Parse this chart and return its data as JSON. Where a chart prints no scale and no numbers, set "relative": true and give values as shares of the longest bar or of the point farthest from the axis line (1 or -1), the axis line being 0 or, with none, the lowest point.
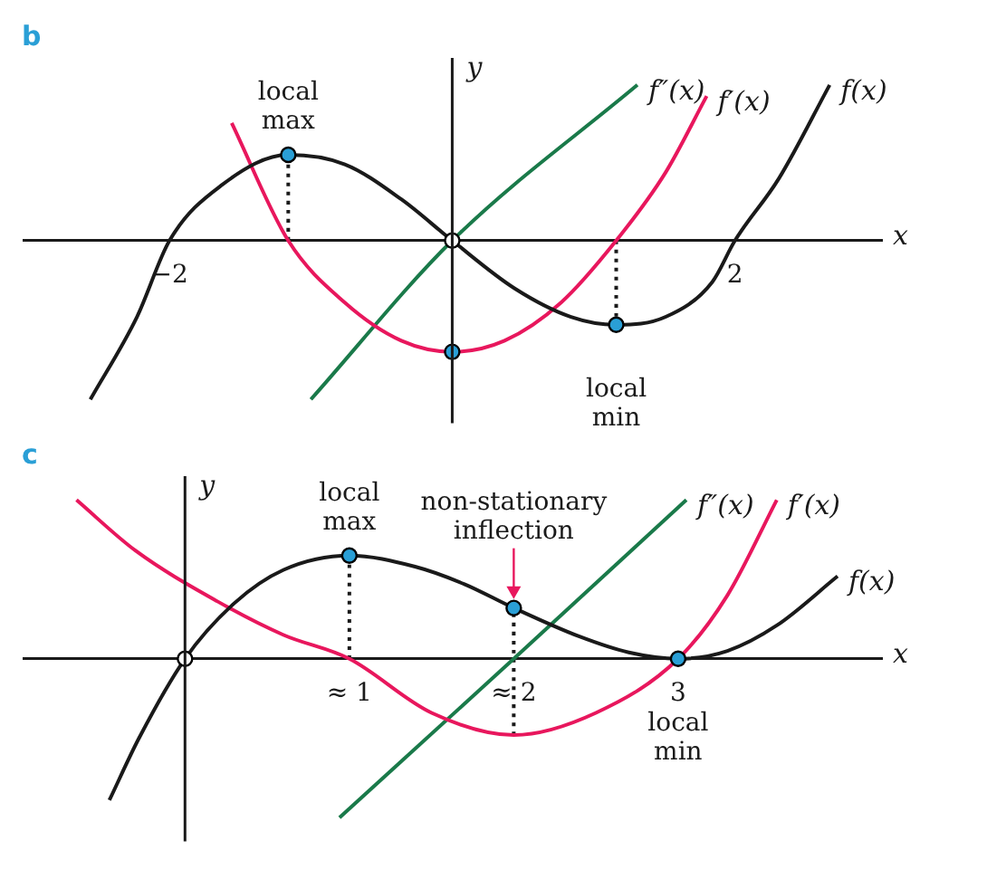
{
  "chart_data": [
    {
      "type": "line",
      "title": "b",
      "xlabel": "x",
      "ylabel": "y",
      "relative": true,
      "xlim": [
        -3.03,
        3.04
      ],
      "xticks": [
        {
          "value": -2,
          "label": "−2"
        },
        2
      ],
      "ref_lines": [
        {
          "axis": "x",
          "value": 0
        }
      ],
      "annotations": [
        {
          "text": "local max",
          "x": -1.16,
          "y": 0.54
        },
        {
          "text": "local min",
          "x": 1.16,
          "y": -0.53
        }
      ],
      "series": [
        {
          "name": "f(x)",
          "color": "#1a1a1a",
          "x": [
            -2.56,
            -2.23,
            -2,
            -1.63,
            -1.16,
            -0.76,
            -0.36,
            0,
            0.44,
            0.84,
            1.16,
            1.51,
            1.84,
            2,
            2.31,
            2.67
          ],
          "values": [
            -1.0,
            -0.48,
            0,
            0.35,
            0.54,
            0.48,
            0.26,
            0,
            -0.3,
            -0.48,
            -0.53,
            -0.48,
            -0.26,
            0,
            0.39,
            0.98
          ]
        },
        {
          "name": "f′(x)",
          "color": "#e8175d",
          "x": [
            -1.56,
            -1.16,
            -0.76,
            -0.36,
            0,
            0.37,
            0.77,
            1.16,
            1.51,
            1.8
          ],
          "values": [
            0.74,
            0,
            -0.39,
            -0.63,
            -0.7,
            -0.63,
            -0.39,
            0,
            0.43,
            0.91
          ]
        },
        {
          "name": "f″(x)",
          "color": "#1a7a4a",
          "x": [
            -1,
            0,
            1.31
          ],
          "values": [
            -1.0,
            0,
            0.98
          ]
        },
        {
          "type": "line",
          "line_style": "dotted",
          "color": "#1a1a1a",
          "x": [
            -1.16,
            -1.16
          ],
          "values": [
            0,
            0.54
          ]
        },
        {
          "type": "line",
          "line_style": "dotted",
          "color": "#1a1a1a",
          "x": [
            1.16,
            1.16
          ],
          "values": [
            0,
            -0.53
          ]
        },
        {
          "type": "scatter",
          "marker": "circle",
          "color": "#2a9fd6",
          "x": [
            -1.16,
            1.16,
            0
          ],
          "values": [
            0.54,
            -0.53,
            -0.7
          ]
        },
        {
          "type": "scatter",
          "marker": "circle",
          "color": "#ffffff",
          "x": [
            0
          ],
          "values": [
            0
          ]
        }
      ]
    },
    {
      "type": "line",
      "title": "c",
      "xlabel": "x",
      "ylabel": "y",
      "relative": true,
      "xlim": [
        -0.98,
        4.24
      ],
      "xticks": [
        {
          "value": 1,
          "label": "≈ 1"
        },
        {
          "value": 2,
          "label": "≈ 2"
        },
        3
      ],
      "ref_lines": [
        {
          "axis": "x",
          "value": 0
        }
      ],
      "annotations": [
        {
          "text": "local max",
          "x": 1,
          "y": 0.65
        },
        {
          "text": "non-stationary inflection",
          "x": 2,
          "y": 0.32
        },
        {
          "text": "local min",
          "x": 3,
          "y": 0
        }
      ],
      "series": [
        {
          "name": "f(x)",
          "color": "#1a1a1a",
          "x": [
            -0.46,
            -0.28,
            0,
            0.3,
            0.6,
            1,
            1.4,
            1.7,
            2,
            2.4,
            2.7,
            3,
            3.3,
            3.6,
            3.97
          ],
          "values": [
            -0.89,
            -0.5,
            0,
            0.35,
            0.56,
            0.65,
            0.58,
            0.47,
            0.32,
            0.14,
            0.04,
            0,
            0.05,
            0.21,
            0.52
          ]
        },
        {
          "name": "f′(x)",
          "color": "#e8175d",
          "x": [
            -0.66,
            -0.3,
            0.2,
            0.6,
            1,
            1.5,
            2,
            2.5,
            3,
            3.3,
            3.6
          ],
          "values": [
            1.0,
            0.68,
            0.36,
            0.15,
            0,
            -0.34,
            -0.48,
            -0.34,
            0,
            0.4,
            1.0
          ]
        },
        {
          "name": "f″(x)",
          "color": "#1a7a4a",
          "x": [
            0.94,
            2,
            3.05
          ],
          "values": [
            -1.0,
            0,
            1.0
          ]
        },
        {
          "type": "line",
          "line_style": "dotted",
          "color": "#1a1a1a",
          "x": [
            1,
            1
          ],
          "values": [
            0,
            0.65
          ]
        },
        {
          "type": "line",
          "line_style": "dotted",
          "color": "#1a1a1a",
          "x": [
            2,
            2
          ],
          "values": [
            -0.48,
            0.32
          ]
        },
        {
          "type": "scatter",
          "marker": "circle",
          "color": "#2a9fd6",
          "x": [
            1,
            2,
            3
          ],
          "values": [
            0.65,
            0.32,
            0
          ]
        },
        {
          "type": "scatter",
          "marker": "circle",
          "color": "#ffffff",
          "x": [
            0
          ],
          "values": [
            0
          ]
        }
      ]
    }
  ]
}
